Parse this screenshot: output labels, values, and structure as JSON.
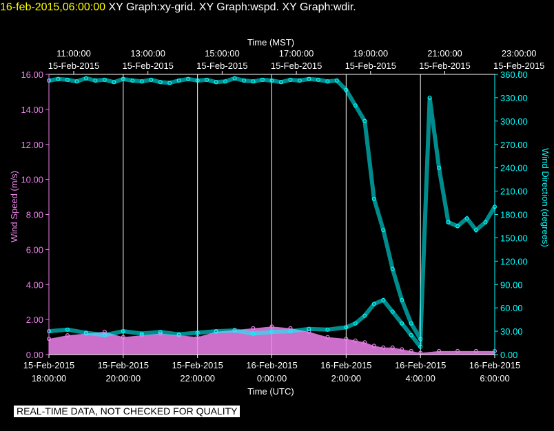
{
  "header": {
    "timestamp": "16-feb-2015,06:00:00",
    "graphs": "XY Graph:xy-grid.  XY Graph:wspd.  XY Graph:wdir."
  },
  "footer": {
    "quality_note": "REAL-TIME DATA, NOT CHECKED FOR QUALITY"
  },
  "colors": {
    "background": "#000000",
    "speed": "#ee82ee",
    "direction": "#00ffff",
    "grid": "#ffffff",
    "timestamp": "#ffff00"
  },
  "chart_data": {
    "type": "scatter",
    "top_axis": {
      "label": "Time (MST)",
      "ticks": [
        {
          "time": "11:00:00",
          "date": "15-Feb-2015"
        },
        {
          "time": "13:00:00",
          "date": "15-Feb-2015"
        },
        {
          "time": "15:00:00",
          "date": "15-Feb-2015"
        },
        {
          "time": "17:00:00",
          "date": "15-Feb-2015"
        },
        {
          "time": "19:00:00",
          "date": "15-Feb-2015"
        },
        {
          "time": "21:00:00",
          "date": "15-Feb-2015"
        },
        {
          "time": "23:00:00",
          "date": "15-Feb-2015"
        }
      ]
    },
    "bottom_axis": {
      "label": "Time (UTC)",
      "range_hours": [
        0,
        12
      ],
      "ticks": [
        {
          "date": "15-Feb-2015",
          "time": "18:00:00"
        },
        {
          "date": "15-Feb-2015",
          "time": "20:00:00"
        },
        {
          "date": "15-Feb-2015",
          "time": "22:00:00"
        },
        {
          "date": "16-Feb-2015",
          "time": "0:00:00"
        },
        {
          "date": "16-Feb-2015",
          "time": "2:00:00"
        },
        {
          "date": "16-Feb-2015",
          "time": "4:00:00"
        },
        {
          "date": "16-Feb-2015",
          "time": "6:00:00"
        }
      ]
    },
    "left_axis": {
      "label": "Wind Speed (m/s)",
      "ylim": [
        0,
        16
      ],
      "ticks": [
        "0.00",
        "2.00",
        "4.00",
        "6.00",
        "8.00",
        "10.00",
        "12.00",
        "14.00",
        "16.00"
      ]
    },
    "right_axis": {
      "label": "Wind Direction (degrees)",
      "ylim": [
        0,
        360
      ],
      "ticks": [
        "0.00",
        "30.00",
        "60.00",
        "90.00",
        "120.00",
        "150.00",
        "180.00",
        "210.00",
        "240.00",
        "270.00",
        "300.00",
        "330.00",
        "360.00"
      ]
    },
    "grid": "vertical",
    "series": [
      {
        "color": "#ee82ee",
        "axis": "left",
        "x_hours": [
          0,
          0.5,
          1,
          1.5,
          2,
          2.5,
          3,
          3.5,
          4,
          4.5,
          5,
          5.5,
          6,
          6.5,
          7,
          7.5,
          8,
          8.25,
          8.5,
          8.75,
          9,
          9.25,
          9.5,
          9.75,
          10,
          10.5,
          11,
          11.5,
          12
        ],
        "values": [
          0.9,
          1.1,
          1.2,
          1.3,
          1.0,
          1.1,
          1.2,
          1.1,
          1.0,
          1.3,
          1.4,
          1.5,
          1.6,
          1.5,
          1.3,
          1.0,
          0.9,
          0.8,
          0.7,
          0.5,
          0.4,
          0.4,
          0.3,
          0.2,
          0.1,
          0.2,
          0.2,
          0.2,
          0.2
        ]
      },
      {
        "color": "#00ffff",
        "axis": "right",
        "x_hours": [
          0,
          0.25,
          0.5,
          0.75,
          1,
          1.25,
          1.5,
          1.75,
          2,
          2.25,
          2.5,
          2.75,
          3,
          3.25,
          3.5,
          3.75,
          4,
          4.25,
          4.5,
          4.75,
          5,
          5.25,
          5.5,
          5.75,
          6,
          6.25,
          6.5,
          6.75,
          7,
          7.25,
          7.5,
          7.75,
          8,
          8.25,
          8.5,
          8.75,
          9,
          9.25,
          9.5,
          9.75,
          10,
          10.25,
          10.5,
          10.75,
          11,
          11.25,
          11.5,
          11.75,
          12
        ],
        "values": [
          352,
          354,
          353,
          351,
          355,
          352,
          353,
          350,
          354,
          352,
          351,
          353,
          350,
          349,
          352,
          354,
          352,
          353,
          350,
          351,
          355,
          352,
          351,
          353,
          352,
          350,
          353,
          352,
          354,
          353,
          351,
          352,
          340,
          320,
          300,
          200,
          160,
          110,
          70,
          40,
          20,
          330,
          240,
          170,
          165,
          175,
          160,
          170,
          190
        ]
      },
      {
        "color": "#00ffff",
        "axis": "right",
        "x_hours": [
          0,
          0.5,
          1,
          1.5,
          2,
          2.5,
          3,
          3.5,
          4,
          4.5,
          5,
          5.5,
          6,
          6.5,
          7,
          7.5,
          8,
          8.25,
          8.5,
          8.75,
          9,
          9.25,
          9.5,
          9.75,
          10
        ],
        "values": [
          30,
          32,
          28,
          25,
          30,
          27,
          29,
          26,
          28,
          30,
          31,
          27,
          29,
          30,
          33,
          32,
          35,
          40,
          50,
          65,
          70,
          55,
          40,
          25,
          10
        ]
      }
    ]
  }
}
